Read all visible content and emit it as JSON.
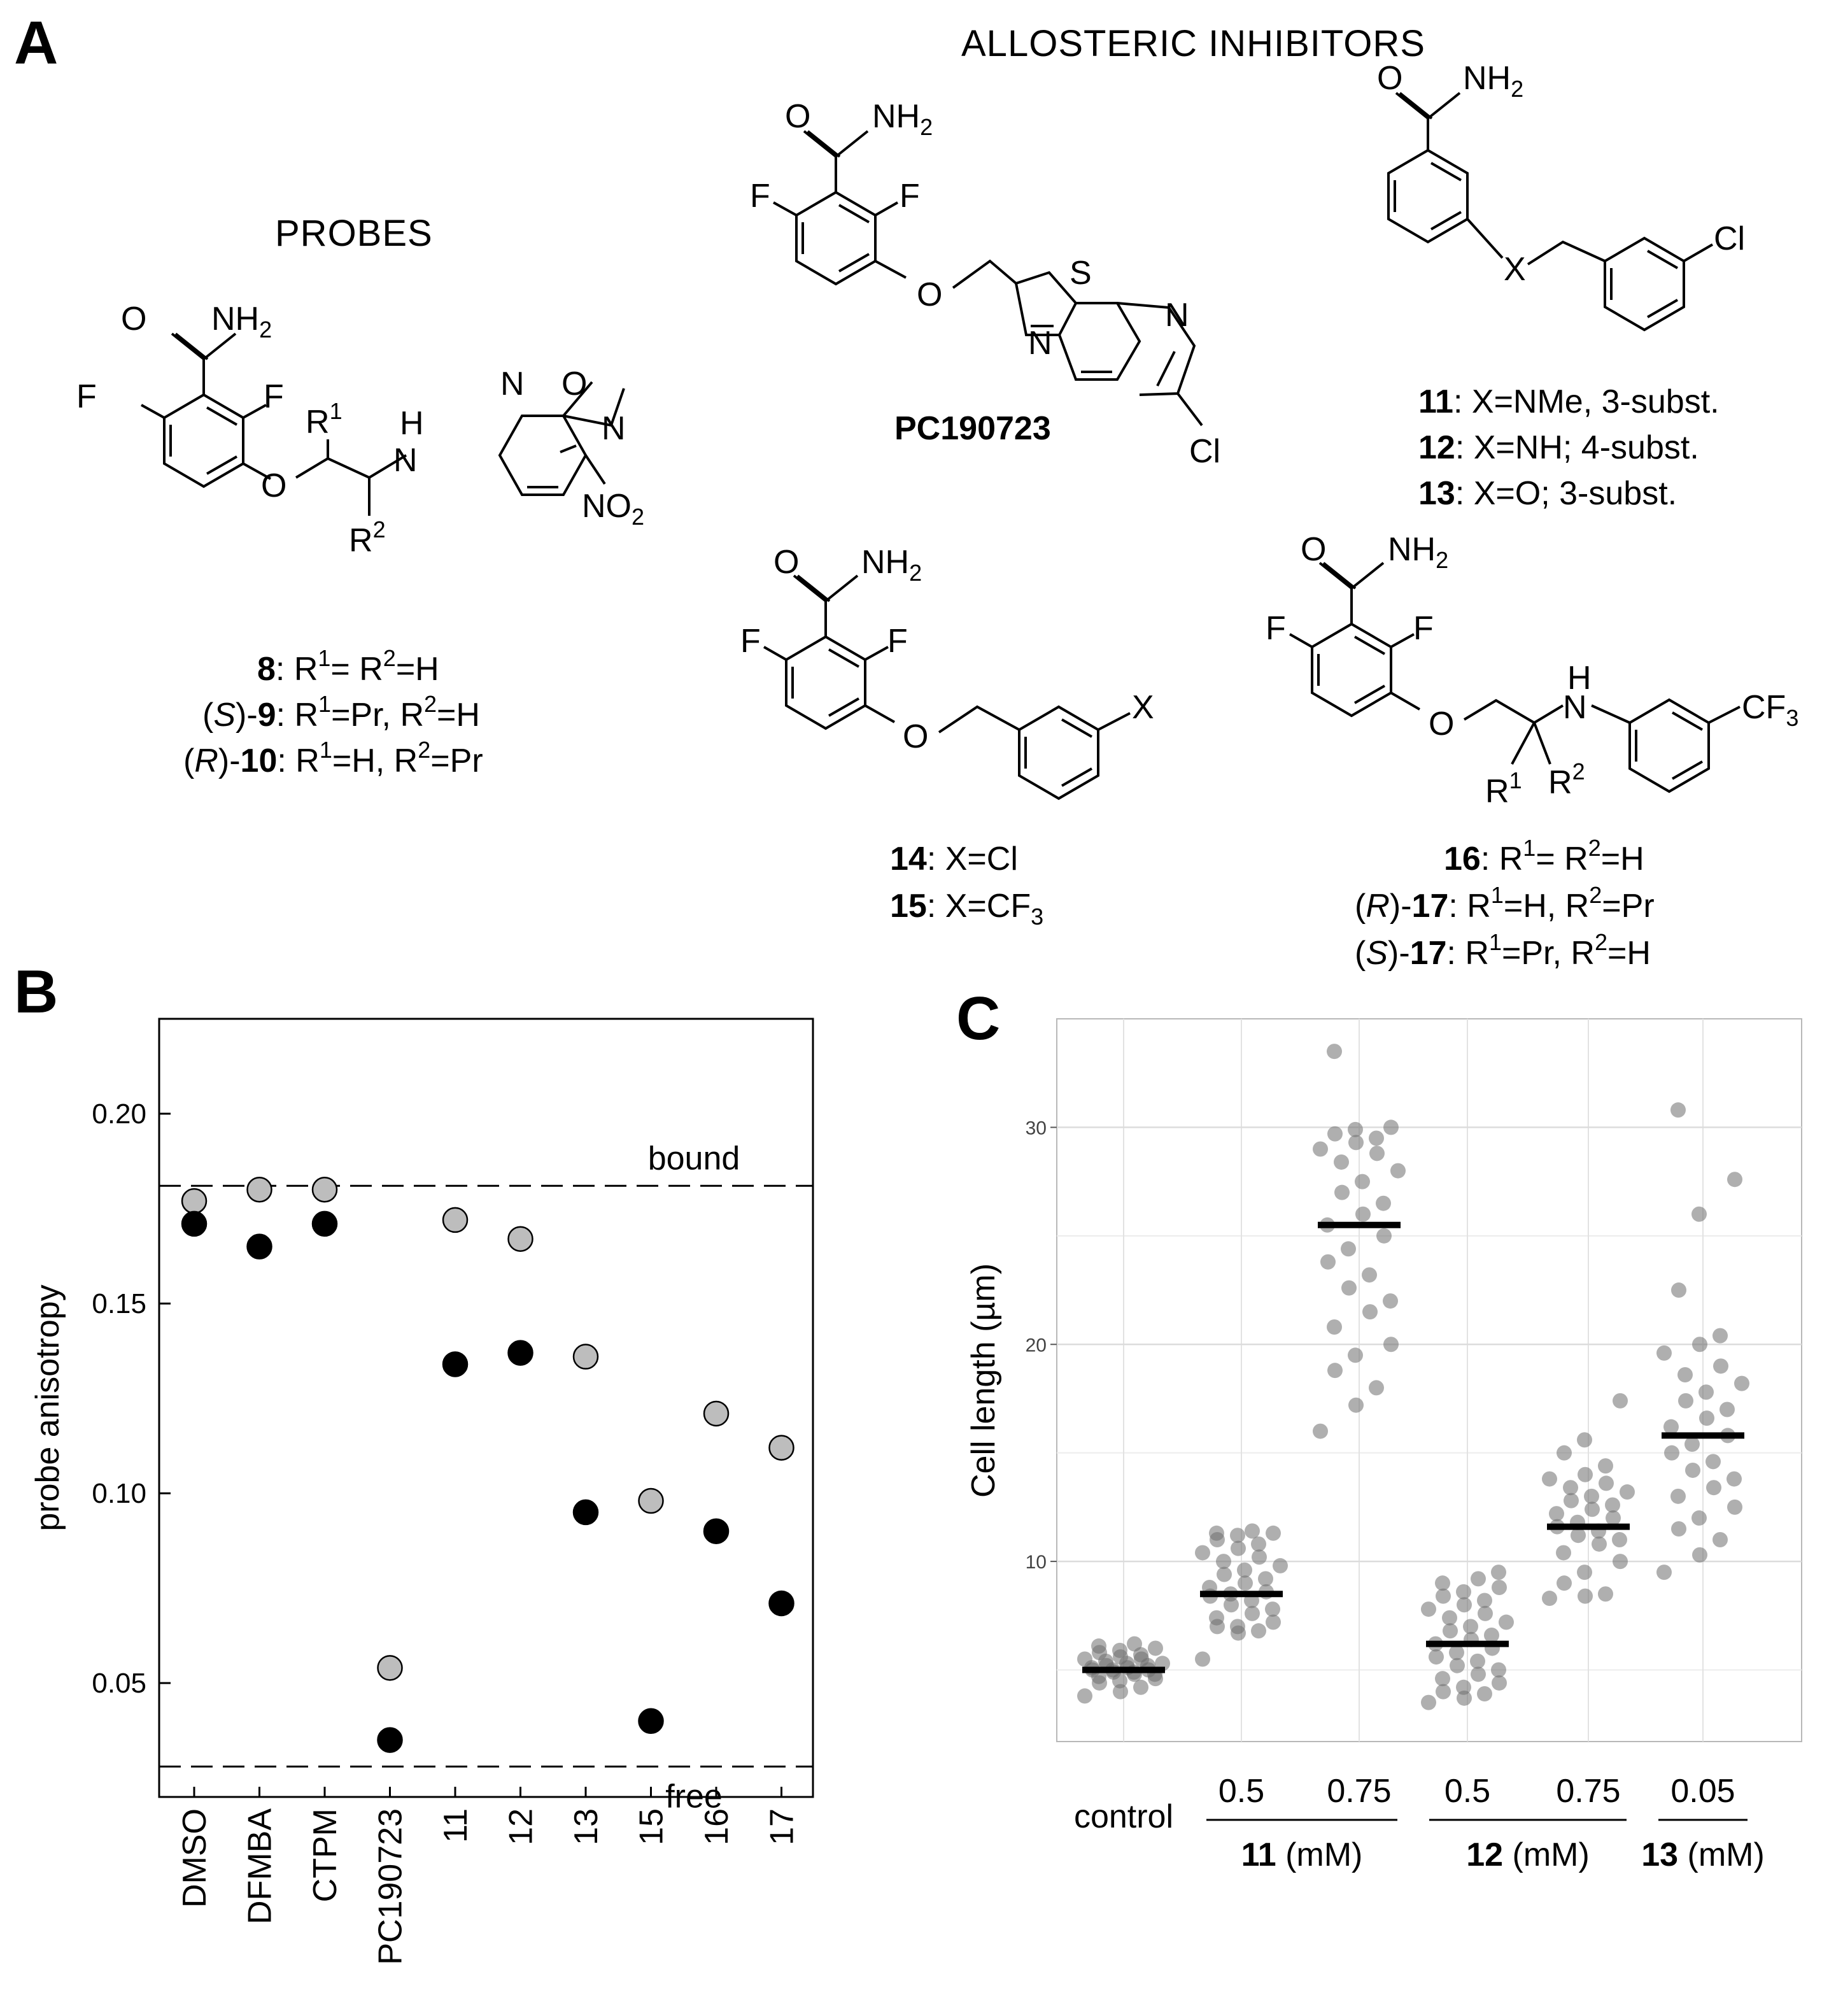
{
  "panel_letters": {
    "a": "A",
    "b": "B",
    "c": "C"
  },
  "headings": {
    "probes": "PROBES",
    "allosteric": "ALLOSTERIC  INHIBITORS"
  },
  "atoms": {
    "O": "O",
    "NH2": "NH",
    "sub2": "2",
    "F": "F",
    "S": "S",
    "N": "N",
    "Cl": "Cl",
    "X": "X",
    "H": "H",
    "NO2": "NO",
    "CF3": "CF",
    "sub3": "3",
    "R": "R",
    "sup1": "1",
    "sup2": "2"
  },
  "compounds": {
    "pc": "PC190723",
    "c11": {
      "num": "11",
      "txt": ": X=NMe,  3-subst."
    },
    "c12": {
      "num": "12",
      "txt": ": X=NH;  4-subst."
    },
    "c13": {
      "num": "13",
      "txt": ": X=O; 3-subst."
    },
    "c14": {
      "num": "14",
      "txt": ": X=Cl"
    },
    "c15": {
      "num": "15",
      "txt": ": X=CF"
    },
    "c8": {
      "num": "8",
      "a": ": R",
      "b": "= R",
      "c": "=H"
    },
    "c9": {
      "open": "(",
      "S": "S",
      "close": ")-",
      "num": "9",
      "a": ": R",
      "b": "=Pr, R",
      "c": "=H"
    },
    "c10": {
      "open": "(",
      "R": "R",
      "close": ")-",
      "num": "10",
      "a": ": R",
      "b": "=H, R",
      "c": "=Pr"
    },
    "c16": {
      "num": "16",
      "a": ": R",
      "b": "= R",
      "c": "=H"
    },
    "c17r": {
      "open": "(",
      "R": "R",
      "close": ")-",
      "num": "17",
      "a": ": R",
      "b": "=H, R",
      "c": "=Pr"
    },
    "c17s": {
      "open": "(",
      "S": "S",
      "close": ")-",
      "num": "17",
      "a": ": R",
      "b": "=Pr, R",
      "c": "=H"
    }
  },
  "chart_data": [
    {
      "panel": "B",
      "type": "scatter",
      "ylabel": "probe anisotropy",
      "ylim": [
        0.02,
        0.225
      ],
      "yticks": [
        "0.05",
        "0.10",
        "0.15",
        "0.20"
      ],
      "categories": [
        "DMSO",
        "DFMBA",
        "CTPM",
        "PC190723",
        "11",
        "12",
        "13",
        "15",
        "16",
        "17"
      ],
      "series": [
        {
          "color": "#bdbdbd",
          "values": [
            0.177,
            0.18,
            0.18,
            0.054,
            0.172,
            0.167,
            0.136,
            0.098,
            0.121,
            0.112
          ]
        },
        {
          "color": "#000000",
          "values": [
            0.171,
            0.165,
            0.171,
            0.035,
            0.134,
            0.137,
            0.095,
            0.04,
            0.09,
            0.071
          ]
        }
      ],
      "reference_lines": [
        {
          "label": "bound",
          "y": 0.181
        },
        {
          "label": "free",
          "y": 0.028
        }
      ]
    },
    {
      "panel": "C",
      "type": "scatter",
      "ylabel": "Cell length (µm)",
      "ylim": [
        1.7,
        35.0
      ],
      "yticks": [
        "10",
        "20",
        "30"
      ],
      "categories": [
        "control",
        "0.5",
        "0.75",
        "0.5",
        "0.75",
        "0.05"
      ],
      "group_labels": [
        {
          "num": "11",
          "unit": " (mM)"
        },
        {
          "num": "12",
          "unit": " (mM)"
        },
        {
          "num": "13",
          "unit": " (mM)"
        }
      ],
      "medians": [
        5.0,
        8.5,
        25.5,
        6.2,
        11.6,
        15.8
      ],
      "points": [
        [
          3.8,
          4.0,
          4.2,
          4.4,
          4.5,
          4.6,
          4.7,
          4.8,
          4.8,
          4.9,
          4.9,
          5.0,
          5.0,
          5.0,
          5.1,
          5.1,
          5.2,
          5.2,
          5.3,
          5.3,
          5.4,
          5.5,
          5.5,
          5.6,
          5.7,
          5.8,
          5.9,
          6.0,
          6.1,
          6.2
        ],
        [
          5.5,
          6.7,
          6.8,
          7.0,
          7.0,
          7.2,
          7.4,
          7.6,
          7.8,
          8.0,
          8.2,
          8.4,
          8.5,
          8.6,
          8.8,
          9.0,
          9.2,
          9.4,
          9.6,
          9.8,
          10.0,
          10.2,
          10.4,
          10.6,
          10.8,
          11.0,
          11.2,
          11.3,
          11.3,
          11.4
        ],
        [
          16.0,
          17.2,
          18.0,
          18.8,
          19.5,
          20.0,
          20.8,
          21.5,
          22.0,
          22.6,
          23.2,
          23.8,
          24.4,
          25.0,
          25.5,
          26.0,
          26.5,
          27.0,
          27.5,
          28.0,
          28.4,
          28.8,
          29.0,
          29.3,
          29.5,
          29.7,
          29.9,
          30.0,
          33.5
        ],
        [
          3.5,
          3.7,
          3.9,
          4.0,
          4.2,
          4.4,
          4.6,
          4.8,
          5.0,
          5.2,
          5.4,
          5.6,
          5.8,
          6.0,
          6.2,
          6.4,
          6.6,
          6.8,
          7.0,
          7.2,
          7.4,
          7.6,
          7.8,
          8.0,
          8.2,
          8.4,
          8.6,
          8.8,
          9.0,
          9.2,
          9.5
        ],
        [
          8.3,
          8.4,
          8.5,
          9.0,
          9.5,
          10.0,
          10.4,
          10.8,
          11.0,
          11.2,
          11.4,
          11.6,
          11.8,
          12.0,
          12.2,
          12.4,
          12.6,
          12.8,
          13.0,
          13.2,
          13.4,
          13.6,
          13.8,
          14.0,
          14.4,
          15.0,
          15.6,
          17.4
        ],
        [
          9.5,
          10.3,
          11.0,
          11.5,
          12.0,
          12.5,
          13.0,
          13.4,
          13.8,
          14.2,
          14.6,
          15.0,
          15.4,
          15.8,
          16.2,
          16.6,
          17.0,
          17.4,
          17.8,
          18.2,
          18.6,
          19.0,
          19.6,
          20.0,
          20.4,
          22.5,
          26.0,
          27.6,
          30.8
        ]
      ]
    }
  ]
}
